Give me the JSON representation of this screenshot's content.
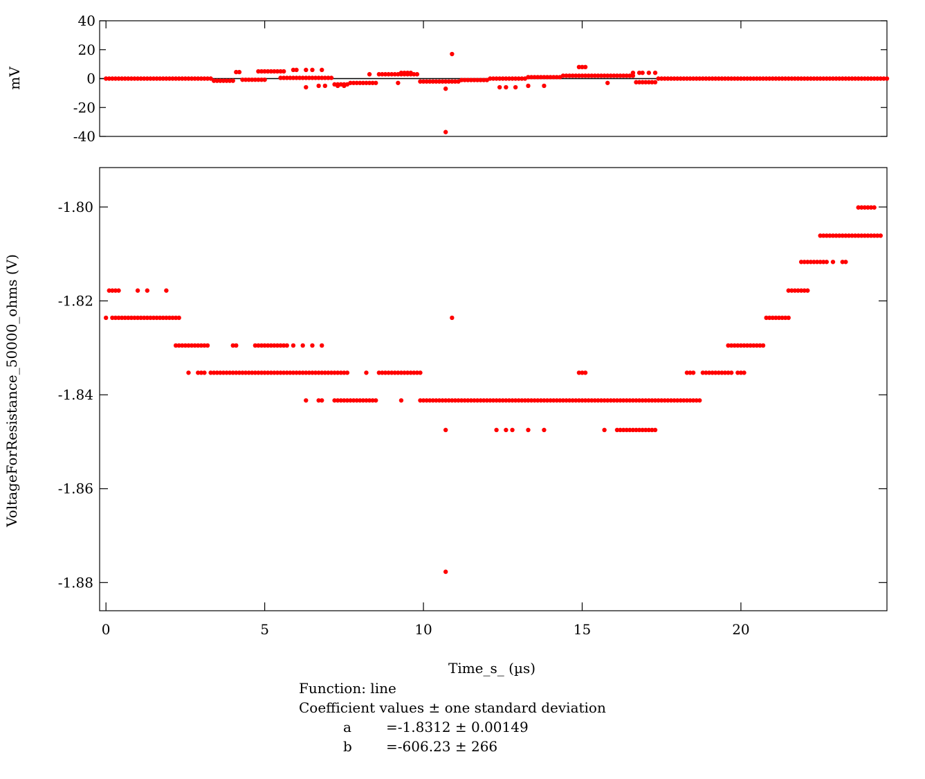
{
  "chart_data": [
    {
      "type": "scatter",
      "title": "",
      "xlabel": "",
      "ylabel": "mV",
      "xlim": [
        -0.2,
        24.6
      ],
      "ylim": [
        -40,
        40
      ],
      "yticks": [
        40,
        20,
        0,
        -20,
        -40
      ],
      "ytick_labels": [
        "40",
        "20",
        "0",
        "-20",
        "-40"
      ],
      "grid": false,
      "marker_color": "#ff0000",
      "line_color": "#000000",
      "zero_line": true,
      "segments": [
        [
          0.0,
          3.3,
          0
        ],
        [
          3.4,
          4.0,
          -1.5
        ],
        [
          4.3,
          5.0,
          -0.8
        ],
        [
          5.5,
          7.1,
          0.5
        ],
        [
          7.2,
          7.6,
          -4
        ],
        [
          7.7,
          8.5,
          -3
        ],
        [
          8.6,
          9.8,
          3
        ],
        [
          9.9,
          11.1,
          -2
        ],
        [
          11.2,
          12.0,
          -1
        ],
        [
          12.1,
          13.2,
          0
        ],
        [
          13.3,
          14.3,
          1
        ],
        [
          14.4,
          16.6,
          2
        ],
        [
          16.7,
          17.3,
          -2.5
        ],
        [
          17.4,
          24.6,
          0
        ]
      ],
      "points": [
        [
          4.1,
          4.5
        ],
        [
          4.2,
          4.5
        ],
        [
          4.8,
          5
        ],
        [
          4.9,
          5
        ],
        [
          5.0,
          5
        ],
        [
          5.1,
          5
        ],
        [
          5.2,
          5
        ],
        [
          5.3,
          5
        ],
        [
          5.4,
          5
        ],
        [
          5.5,
          5
        ],
        [
          5.6,
          5
        ],
        [
          5.9,
          6
        ],
        [
          6.0,
          6
        ],
        [
          6.3,
          6
        ],
        [
          6.5,
          6
        ],
        [
          6.8,
          6
        ],
        [
          6.3,
          -6
        ],
        [
          6.7,
          -5
        ],
        [
          6.9,
          -5
        ],
        [
          7.3,
          -5
        ],
        [
          7.5,
          -5
        ],
        [
          8.3,
          3
        ],
        [
          9.2,
          -3
        ],
        [
          9.3,
          4
        ],
        [
          9.4,
          4
        ],
        [
          9.5,
          4
        ],
        [
          9.6,
          4
        ],
        [
          10.7,
          -7
        ],
        [
          10.7,
          -37
        ],
        [
          10.9,
          17
        ],
        [
          12.4,
          -6
        ],
        [
          12.6,
          -6
        ],
        [
          12.9,
          -6
        ],
        [
          13.3,
          -5
        ],
        [
          13.8,
          -5
        ],
        [
          14.9,
          8
        ],
        [
          15.0,
          8
        ],
        [
          15.1,
          8
        ],
        [
          15.8,
          -3
        ],
        [
          16.6,
          4
        ],
        [
          16.8,
          4
        ],
        [
          16.9,
          4
        ],
        [
          17.1,
          4
        ],
        [
          17.3,
          4
        ]
      ]
    },
    {
      "type": "scatter",
      "title": "",
      "xlabel": "Time_s_ (µs)",
      "ylabel": "VoltageForResistance_50000_ohms (V)",
      "xlim": [
        -0.2,
        24.6
      ],
      "ylim": [
        -1.886,
        -1.7916
      ],
      "xticks": [
        0,
        5,
        10,
        15,
        20
      ],
      "yticks": [
        -1.8,
        -1.82,
        -1.84,
        -1.86,
        -1.88
      ],
      "ytick_labels": [
        "-1.80",
        "-1.82",
        "-1.84",
        "-1.86",
        "-1.88"
      ],
      "grid": false,
      "marker_color": "#ff0000",
      "levels": [
        -1.8001,
        -1.8061,
        -1.8117,
        -1.8178,
        -1.8236,
        -1.8295,
        -1.8353,
        -1.8412,
        -1.8475,
        -1.8777
      ],
      "runs": [
        [
          0.0,
          0.0,
          4
        ],
        [
          0.1,
          0.4,
          3
        ],
        [
          1.0,
          1.0,
          3
        ],
        [
          1.3,
          1.3,
          3
        ],
        [
          1.9,
          1.9,
          3
        ],
        [
          0.2,
          2.3,
          4
        ],
        [
          2.2,
          3.2,
          5
        ],
        [
          2.6,
          2.6,
          6
        ],
        [
          2.9,
          3.1,
          6
        ],
        [
          3.3,
          7.6,
          6
        ],
        [
          4.0,
          4.1,
          5
        ],
        [
          4.7,
          5.7,
          5
        ],
        [
          5.9,
          5.9,
          5
        ],
        [
          6.2,
          6.2,
          5
        ],
        [
          6.5,
          6.5,
          5
        ],
        [
          6.8,
          6.8,
          5
        ],
        [
          6.3,
          6.3,
          7
        ],
        [
          6.7,
          6.8,
          7
        ],
        [
          7.2,
          8.5,
          7
        ],
        [
          8.2,
          8.2,
          6
        ],
        [
          8.6,
          9.9,
          6
        ],
        [
          9.3,
          9.3,
          7
        ],
        [
          9.9,
          18.7,
          7
        ],
        [
          10.7,
          10.7,
          8
        ],
        [
          12.3,
          12.3,
          8
        ],
        [
          12.6,
          12.6,
          8
        ],
        [
          12.8,
          12.8,
          8
        ],
        [
          13.3,
          13.3,
          8
        ],
        [
          13.8,
          13.8,
          8
        ],
        [
          15.7,
          15.7,
          8
        ],
        [
          16.1,
          17.3,
          8
        ],
        [
          10.7,
          10.7,
          9
        ],
        [
          10.9,
          10.9,
          4
        ],
        [
          14.9,
          15.1,
          6
        ],
        [
          18.3,
          18.5,
          6
        ],
        [
          18.8,
          19.7,
          6
        ],
        [
          19.9,
          20.1,
          6
        ],
        [
          19.6,
          20.7,
          5
        ],
        [
          20.8,
          21.5,
          4
        ],
        [
          21.5,
          22.1,
          3
        ],
        [
          21.9,
          22.7,
          2
        ],
        [
          22.9,
          22.9,
          2
        ],
        [
          23.2,
          23.3,
          2
        ],
        [
          22.5,
          24.4,
          1
        ],
        [
          23.7,
          24.2,
          0
        ]
      ]
    }
  ],
  "xtick_labels": [
    "0",
    "5",
    "10",
    "15",
    "20"
  ],
  "xlabel": "Time_s_ (µs)",
  "ylabel_top": "mV",
  "ylabel_bottom": "VoltageForResistance_50000_ohms (V)",
  "fit": {
    "function": "Function: line",
    "header": "Coefficient values ± one standard deviation",
    "a_name": "a",
    "a_value": "=-1.8312 ± 0.00149",
    "b_name": "b",
    "b_value": "=-606.23 ± 266"
  }
}
